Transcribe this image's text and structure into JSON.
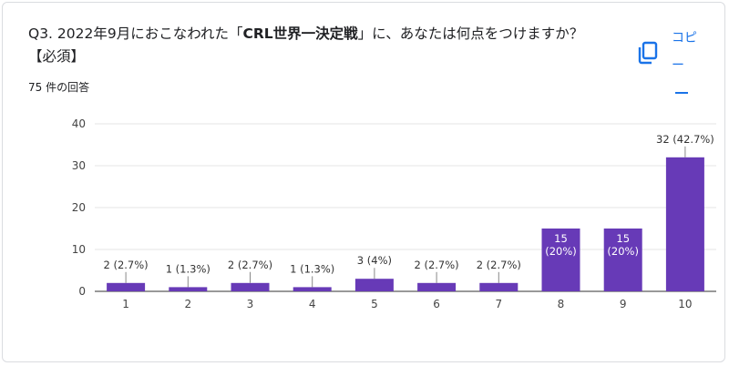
{
  "question": {
    "prefix": "Q3. 2022年9月におこなわれた「",
    "bold": "CRL世界一決定戦",
    "suffix": "」に、あなたは何点をつけますか？【必須】"
  },
  "response_count": "75 件の回答",
  "copy_button": {
    "label": "コピー",
    "icon": "copy-icon"
  },
  "colors": {
    "bar": "#673ab7",
    "label": "#333333",
    "label_inside": "#ffffff",
    "grid": "#e6e6e6",
    "accent": "#1a73e8"
  },
  "chart_data": {
    "type": "bar",
    "title": "",
    "xlabel": "",
    "ylabel": "",
    "categories": [
      "1",
      "2",
      "3",
      "4",
      "5",
      "6",
      "7",
      "8",
      "9",
      "10"
    ],
    "values": [
      2,
      1,
      2,
      1,
      3,
      2,
      2,
      15,
      15,
      32
    ],
    "data_labels": [
      "2 (2.7%)",
      "1 (1.3%)",
      "2 (2.7%)",
      "1 (1.3%)",
      "3 (4%)",
      "2 (2.7%)",
      "2 (2.7%)",
      "15 (20%)",
      "15 (20%)",
      "32 (42.7%)"
    ],
    "labels_inside": [
      false,
      false,
      false,
      false,
      false,
      false,
      false,
      true,
      true,
      false
    ],
    "yticks": [
      "0",
      "10",
      "20",
      "30",
      "40"
    ],
    "ylim": [
      0,
      40
    ],
    "grid": true,
    "legend": "none"
  }
}
